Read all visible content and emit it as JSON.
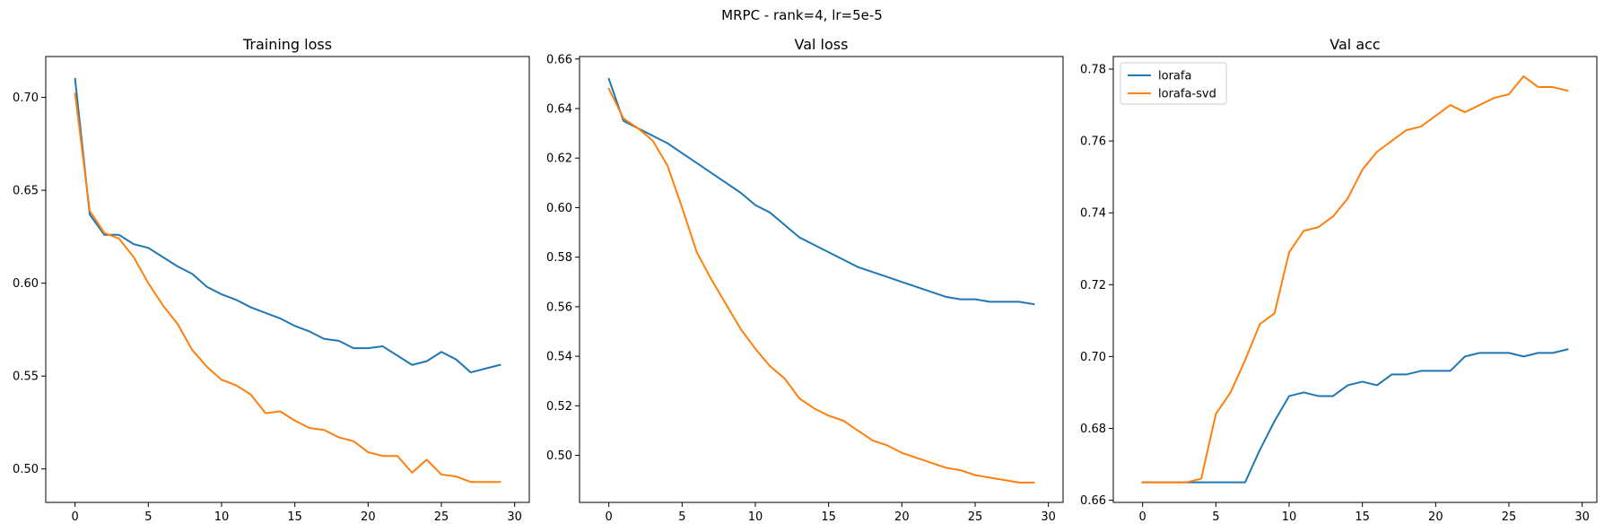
{
  "figure_title": "MRPC - rank=4, lr=5e-5",
  "colors": {
    "lorafa": "#1f77b4",
    "lorafa-svd": "#ff7f0e"
  },
  "chart_data": [
    {
      "type": "line",
      "title": "Training loss",
      "xlim": [
        -2,
        31
      ],
      "ylim": [
        0.482,
        0.722
      ],
      "xticks": [
        0,
        5,
        10,
        15,
        20,
        25,
        30
      ],
      "xtick_labels": [
        "0",
        "5",
        "10",
        "15",
        "20",
        "25",
        "30"
      ],
      "yticks": [
        0.5,
        0.55,
        0.6,
        0.65,
        0.7
      ],
      "ytick_labels": [
        "0.50",
        "0.55",
        "0.60",
        "0.65",
        "0.70"
      ],
      "legend": null,
      "x": [
        0,
        1,
        2,
        3,
        4,
        5,
        6,
        7,
        8,
        9,
        10,
        11,
        12,
        13,
        14,
        15,
        16,
        17,
        18,
        19,
        20,
        21,
        22,
        23,
        24,
        25,
        26,
        27,
        28,
        29
      ],
      "series": [
        {
          "key": "lorafa",
          "values": [
            0.71,
            0.637,
            0.626,
            0.626,
            0.621,
            0.619,
            0.614,
            0.609,
            0.605,
            0.598,
            0.594,
            0.591,
            0.587,
            0.584,
            0.581,
            0.577,
            0.574,
            0.57,
            0.569,
            0.565,
            0.565,
            0.566,
            0.561,
            0.556,
            0.558,
            0.563,
            0.559,
            0.552,
            0.554,
            0.556
          ]
        },
        {
          "key": "lorafa-svd",
          "values": [
            0.702,
            0.639,
            0.627,
            0.624,
            0.614,
            0.6,
            0.588,
            0.578,
            0.564,
            0.555,
            0.548,
            0.545,
            0.54,
            0.53,
            0.531,
            0.526,
            0.522,
            0.521,
            0.517,
            0.515,
            0.509,
            0.507,
            0.507,
            0.498,
            0.505,
            0.497,
            0.496,
            0.493,
            0.493,
            0.493
          ]
        }
      ]
    },
    {
      "type": "line",
      "title": "Val loss",
      "xlim": [
        -2,
        31
      ],
      "ylim": [
        0.481,
        0.661
      ],
      "xticks": [
        0,
        5,
        10,
        15,
        20,
        25,
        30
      ],
      "xtick_labels": [
        "0",
        "5",
        "10",
        "15",
        "20",
        "25",
        "30"
      ],
      "yticks": [
        0.5,
        0.52,
        0.54,
        0.56,
        0.58,
        0.6,
        0.62,
        0.64,
        0.66
      ],
      "ytick_labels": [
        "0.50",
        "0.52",
        "0.54",
        "0.56",
        "0.58",
        "0.60",
        "0.62",
        "0.64",
        "0.66"
      ],
      "legend": null,
      "x": [
        0,
        1,
        2,
        3,
        4,
        5,
        6,
        7,
        8,
        9,
        10,
        11,
        12,
        13,
        14,
        15,
        16,
        17,
        18,
        19,
        20,
        21,
        22,
        23,
        24,
        25,
        26,
        27,
        28,
        29
      ],
      "series": [
        {
          "key": "lorafa",
          "values": [
            0.652,
            0.635,
            0.632,
            0.629,
            0.626,
            0.622,
            0.618,
            0.614,
            0.61,
            0.606,
            0.601,
            0.598,
            0.593,
            0.588,
            0.585,
            0.582,
            0.579,
            0.576,
            0.574,
            0.572,
            0.57,
            0.568,
            0.566,
            0.564,
            0.563,
            0.563,
            0.562,
            0.562,
            0.562,
            0.561
          ]
        },
        {
          "key": "lorafa-svd",
          "values": [
            0.648,
            0.636,
            0.632,
            0.627,
            0.617,
            0.6,
            0.582,
            0.571,
            0.561,
            0.551,
            0.543,
            0.536,
            0.531,
            0.523,
            0.519,
            0.516,
            0.514,
            0.51,
            0.506,
            0.504,
            0.501,
            0.499,
            0.497,
            0.495,
            0.494,
            0.492,
            0.491,
            0.49,
            0.489,
            0.489
          ]
        }
      ]
    },
    {
      "type": "line",
      "title": "Val acc",
      "xlim": [
        -2,
        31
      ],
      "ylim": [
        0.6594,
        0.7835
      ],
      "xticks": [
        0,
        5,
        10,
        15,
        20,
        25,
        30
      ],
      "xtick_labels": [
        "0",
        "5",
        "10",
        "15",
        "20",
        "25",
        "30"
      ],
      "yticks": [
        0.66,
        0.68,
        0.7,
        0.72,
        0.74,
        0.76,
        0.78
      ],
      "ytick_labels": [
        "0.66",
        "0.68",
        "0.70",
        "0.72",
        "0.74",
        "0.76",
        "0.78"
      ],
      "legend": "top-left",
      "x": [
        0,
        1,
        2,
        3,
        4,
        5,
        6,
        7,
        8,
        9,
        10,
        11,
        12,
        13,
        14,
        15,
        16,
        17,
        18,
        19,
        20,
        21,
        22,
        23,
        24,
        25,
        26,
        27,
        28,
        29
      ],
      "series": [
        {
          "key": "lorafa",
          "name": "lorafa",
          "values": [
            0.665,
            0.665,
            0.665,
            0.665,
            0.665,
            0.665,
            0.665,
            0.665,
            0.674,
            0.682,
            0.689,
            0.69,
            0.689,
            0.689,
            0.692,
            0.693,
            0.692,
            0.695,
            0.695,
            0.696,
            0.696,
            0.696,
            0.7,
            0.701,
            0.701,
            0.701,
            0.7,
            0.701,
            0.701,
            0.702
          ]
        },
        {
          "key": "lorafa-svd",
          "name": "lorafa-svd",
          "values": [
            0.665,
            0.665,
            0.665,
            0.665,
            0.666,
            0.684,
            0.69,
            0.699,
            0.709,
            0.712,
            0.729,
            0.735,
            0.736,
            0.739,
            0.744,
            0.752,
            0.757,
            0.76,
            0.763,
            0.764,
            0.767,
            0.77,
            0.768,
            0.77,
            0.772,
            0.773,
            0.778,
            0.775,
            0.775,
            0.774
          ]
        }
      ]
    }
  ]
}
